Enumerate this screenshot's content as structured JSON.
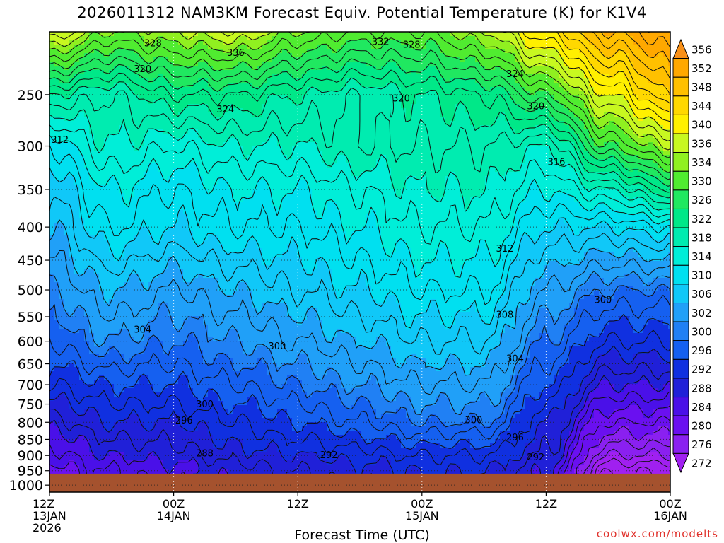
{
  "chart_data": {
    "type": "heatmap",
    "title": "2026011312 NAM3KM Forecast Equiv. Potential Temperature (K) for K1V4",
    "xlabel": "Forecast Time (UTC)",
    "ylabel": "",
    "credit": "coolwx.com/modelts",
    "y_scale": "log",
    "y_ticks": [
      250,
      300,
      350,
      400,
      450,
      500,
      550,
      600,
      650,
      700,
      750,
      800,
      850,
      900,
      950,
      1000
    ],
    "ylim": [
      200,
      1025
    ],
    "x_ticks": [
      {
        "hour": 0,
        "line1": "12Z",
        "line2": "13JAN",
        "line3": "2026"
      },
      {
        "hour": 12,
        "line1": "00Z",
        "line2": "14JAN",
        "line3": ""
      },
      {
        "hour": 24,
        "line1": "12Z",
        "line2": "",
        "line3": ""
      },
      {
        "hour": 36,
        "line1": "00Z",
        "line2": "15JAN",
        "line3": ""
      },
      {
        "hour": 48,
        "line1": "12Z",
        "line2": "",
        "line3": ""
      },
      {
        "hour": 60,
        "line1": "00Z",
        "line2": "16JAN",
        "line3": ""
      }
    ],
    "xlim": [
      0,
      60
    ],
    "colorbar": [
      {
        "value": "272",
        "color": "#a020f0"
      },
      {
        "value": "276",
        "color": "#8a20f0"
      },
      {
        "value": "280",
        "color": "#6a10f0"
      },
      {
        "value": "284",
        "color": "#4a10e8"
      },
      {
        "value": "288",
        "color": "#2020d8"
      },
      {
        "value": "292",
        "color": "#1030e0"
      },
      {
        "value": "296",
        "color": "#1560f0"
      },
      {
        "value": "300",
        "color": "#2080f4"
      },
      {
        "value": "302",
        "color": "#20a0f8"
      },
      {
        "value": "306",
        "color": "#10c8f8"
      },
      {
        "value": "310",
        "color": "#00e0f0"
      },
      {
        "value": "314",
        "color": "#00eed8"
      },
      {
        "value": "318",
        "color": "#00ecb0"
      },
      {
        "value": "322",
        "color": "#00e888"
      },
      {
        "value": "326",
        "color": "#20e860"
      },
      {
        "value": "330",
        "color": "#50ec30"
      },
      {
        "value": "334",
        "color": "#90f020"
      },
      {
        "value": "336",
        "color": "#c8f820"
      },
      {
        "value": "340",
        "color": "#fff000"
      },
      {
        "value": "344",
        "color": "#ffd800"
      },
      {
        "value": "348",
        "color": "#ffc000"
      },
      {
        "value": "352",
        "color": "#ffa800"
      },
      {
        "value": "356",
        "color": "#f89018"
      }
    ],
    "theta_e_profiles": [
      {
        "hour": 0,
        "levels": [
          [
            200,
            340
          ],
          [
            250,
            322
          ],
          [
            300,
            312
          ],
          [
            350,
            308
          ],
          [
            400,
            306
          ],
          [
            500,
            302
          ],
          [
            600,
            298
          ],
          [
            700,
            294
          ],
          [
            800,
            289
          ],
          [
            900,
            285
          ],
          [
            950,
            283
          ]
        ]
      },
      {
        "hour": 6,
        "levels": [
          [
            200,
            334
          ],
          [
            250,
            320
          ],
          [
            300,
            318
          ],
          [
            350,
            314
          ],
          [
            400,
            312
          ],
          [
            500,
            306
          ],
          [
            600,
            302
          ],
          [
            700,
            296
          ],
          [
            800,
            292
          ],
          [
            900,
            288
          ],
          [
            950,
            286
          ]
        ]
      },
      {
        "hour": 12,
        "levels": [
          [
            200,
            336
          ],
          [
            250,
            324
          ],
          [
            300,
            316
          ],
          [
            350,
            312
          ],
          [
            400,
            310
          ],
          [
            500,
            304
          ],
          [
            600,
            300
          ],
          [
            700,
            296
          ],
          [
            800,
            292
          ],
          [
            900,
            289
          ],
          [
            950,
            287
          ]
        ]
      },
      {
        "hour": 18,
        "levels": [
          [
            200,
            338
          ],
          [
            250,
            324
          ],
          [
            300,
            318
          ],
          [
            350,
            314
          ],
          [
            400,
            312
          ],
          [
            500,
            306
          ],
          [
            600,
            302
          ],
          [
            700,
            298
          ],
          [
            800,
            294
          ],
          [
            900,
            291
          ],
          [
            950,
            289
          ]
        ]
      },
      {
        "hour": 24,
        "levels": [
          [
            200,
            334
          ],
          [
            250,
            322
          ],
          [
            300,
            318
          ],
          [
            350,
            314
          ],
          [
            400,
            312
          ],
          [
            500,
            308
          ],
          [
            600,
            304
          ],
          [
            700,
            300
          ],
          [
            800,
            296
          ],
          [
            900,
            292
          ],
          [
            950,
            290
          ]
        ]
      },
      {
        "hour": 30,
        "levels": [
          [
            200,
            332
          ],
          [
            250,
            320
          ],
          [
            300,
            320
          ],
          [
            350,
            316
          ],
          [
            400,
            314
          ],
          [
            500,
            310
          ],
          [
            600,
            306
          ],
          [
            700,
            302
          ],
          [
            800,
            298
          ],
          [
            900,
            293
          ],
          [
            950,
            291
          ]
        ]
      },
      {
        "hour": 36,
        "levels": [
          [
            200,
            332
          ],
          [
            250,
            322
          ],
          [
            300,
            320
          ],
          [
            350,
            318
          ],
          [
            400,
            316
          ],
          [
            500,
            312
          ],
          [
            600,
            308
          ],
          [
            700,
            304
          ],
          [
            800,
            300
          ],
          [
            900,
            294
          ],
          [
            950,
            292
          ]
        ]
      },
      {
        "hour": 42,
        "levels": [
          [
            200,
            336
          ],
          [
            250,
            324
          ],
          [
            300,
            320
          ],
          [
            350,
            318
          ],
          [
            400,
            316
          ],
          [
            500,
            312
          ],
          [
            600,
            308
          ],
          [
            700,
            304
          ],
          [
            800,
            300
          ],
          [
            900,
            294
          ],
          [
            950,
            292
          ]
        ]
      },
      {
        "hour": 48,
        "levels": [
          [
            200,
            344
          ],
          [
            250,
            330
          ],
          [
            300,
            318
          ],
          [
            350,
            314
          ],
          [
            400,
            310
          ],
          [
            500,
            304
          ],
          [
            600,
            300
          ],
          [
            700,
            296
          ],
          [
            800,
            292
          ],
          [
            900,
            290
          ],
          [
            950,
            288
          ]
        ]
      },
      {
        "hour": 54,
        "levels": [
          [
            200,
            352
          ],
          [
            250,
            340
          ],
          [
            300,
            330
          ],
          [
            350,
            318
          ],
          [
            400,
            310
          ],
          [
            500,
            300
          ],
          [
            600,
            294
          ],
          [
            700,
            288
          ],
          [
            800,
            282
          ],
          [
            900,
            276
          ],
          [
            950,
            272
          ]
        ]
      },
      {
        "hour": 60,
        "levels": [
          [
            200,
            356
          ],
          [
            250,
            348
          ],
          [
            300,
            336
          ],
          [
            350,
            324
          ],
          [
            400,
            312
          ],
          [
            500,
            300
          ],
          [
            600,
            294
          ],
          [
            700,
            288
          ],
          [
            800,
            282
          ],
          [
            900,
            276
          ],
          [
            950,
            272
          ]
        ]
      }
    ],
    "contour_labels": [
      {
        "text": "328",
        "hour": 10.0,
        "p": 208
      },
      {
        "text": "336",
        "hour": 18.0,
        "p": 215
      },
      {
        "text": "320",
        "hour": 9.0,
        "p": 228
      },
      {
        "text": "324",
        "hour": 17.0,
        "p": 263
      },
      {
        "text": "332",
        "hour": 32.0,
        "p": 207
      },
      {
        "text": "328",
        "hour": 35.0,
        "p": 209
      },
      {
        "text": "320",
        "hour": 34.0,
        "p": 253
      },
      {
        "text": "324",
        "hour": 45.0,
        "p": 232
      },
      {
        "text": "320",
        "hour": 47.0,
        "p": 260
      },
      {
        "text": "312",
        "hour": 1.0,
        "p": 293
      },
      {
        "text": "316",
        "hour": 49.0,
        "p": 317
      },
      {
        "text": "312",
        "hour": 44.0,
        "p": 431
      },
      {
        "text": "300",
        "hour": 53.5,
        "p": 517
      },
      {
        "text": "308",
        "hour": 44.0,
        "p": 545
      },
      {
        "text": "304",
        "hour": 9.0,
        "p": 575
      },
      {
        "text": "300",
        "hour": 22.0,
        "p": 610
      },
      {
        "text": "304",
        "hour": 45.0,
        "p": 637
      },
      {
        "text": "300",
        "hour": 15.0,
        "p": 749
      },
      {
        "text": "296",
        "hour": 13.0,
        "p": 793
      },
      {
        "text": "300",
        "hour": 41.0,
        "p": 792
      },
      {
        "text": "296",
        "hour": 45.0,
        "p": 843
      },
      {
        "text": "288",
        "hour": 15.0,
        "p": 892
      },
      {
        "text": "292",
        "hour": 27.0,
        "p": 897
      },
      {
        "text": "292",
        "hour": 47.0,
        "p": 904
      }
    ],
    "ground_pressure": 960,
    "grid": true,
    "legend": "right"
  }
}
